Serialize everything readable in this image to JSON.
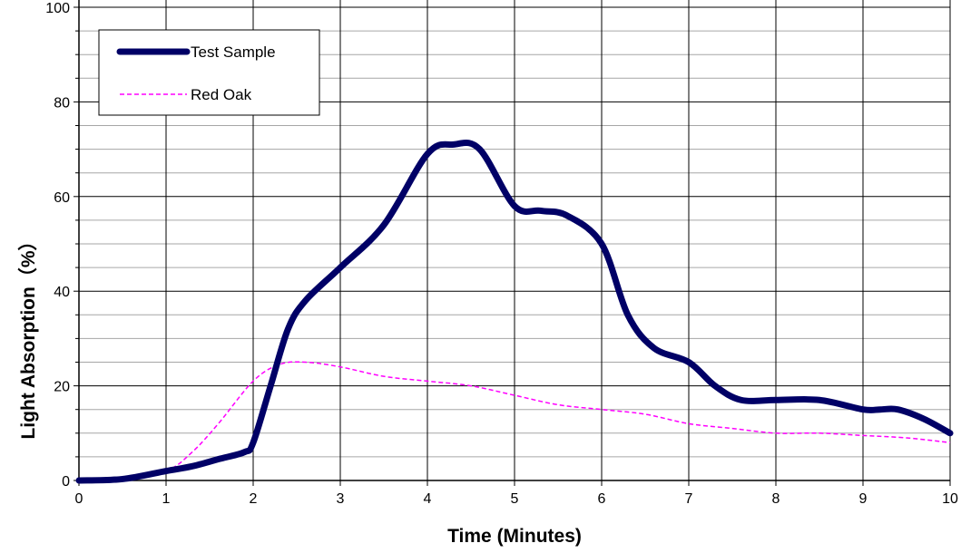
{
  "chart_data": {
    "type": "line",
    "title": "",
    "xlabel": "Time (Minutes)",
    "ylabel": "Light Absorption（%）",
    "xlim": [
      0,
      10
    ],
    "ylim": [
      0,
      100
    ],
    "x_ticks": [
      "0",
      "1",
      "2",
      "3",
      "4",
      "5",
      "6",
      "7",
      "8",
      "9",
      "10"
    ],
    "y_ticks": [
      "0",
      "20",
      "40",
      "60",
      "80",
      "100"
    ],
    "grid": "major and minor",
    "legend_position": "top-left",
    "series": [
      {
        "name": "Test Sample",
        "color": "#000066",
        "style": "solid-thick",
        "points": [
          [
            0,
            0
          ],
          [
            0.5,
            0.3
          ],
          [
            1,
            2
          ],
          [
            1.3,
            3
          ],
          [
            1.6,
            4.5
          ],
          [
            1.9,
            6
          ],
          [
            2,
            8
          ],
          [
            2.2,
            20
          ],
          [
            2.4,
            32
          ],
          [
            2.6,
            38
          ],
          [
            3,
            45
          ],
          [
            3.5,
            54
          ],
          [
            4,
            69
          ],
          [
            4.3,
            71
          ],
          [
            4.6,
            70
          ],
          [
            5,
            58
          ],
          [
            5.3,
            57
          ],
          [
            5.6,
            56
          ],
          [
            6,
            50
          ],
          [
            6.3,
            35
          ],
          [
            6.6,
            28
          ],
          [
            7,
            25
          ],
          [
            7.3,
            20
          ],
          [
            7.6,
            17
          ],
          [
            8,
            17
          ],
          [
            8.5,
            17
          ],
          [
            9,
            15
          ],
          [
            9.2,
            15
          ],
          [
            9.4,
            15
          ],
          [
            9.7,
            13
          ],
          [
            10,
            10
          ]
        ]
      },
      {
        "name": "Red Oak",
        "color": "#ff00ff",
        "style": "dashed",
        "points": [
          [
            0,
            0
          ],
          [
            0.5,
            0.5
          ],
          [
            1,
            2
          ],
          [
            1.3,
            6
          ],
          [
            1.6,
            12
          ],
          [
            2,
            21
          ],
          [
            2.3,
            24.5
          ],
          [
            2.6,
            25
          ],
          [
            3,
            24
          ],
          [
            3.5,
            22
          ],
          [
            4,
            21
          ],
          [
            4.5,
            20
          ],
          [
            5,
            18
          ],
          [
            5.5,
            16
          ],
          [
            6,
            15
          ],
          [
            6.5,
            14
          ],
          [
            7,
            12
          ],
          [
            7.5,
            11
          ],
          [
            8,
            10
          ],
          [
            8.5,
            10
          ],
          [
            9,
            9.5
          ],
          [
            9.5,
            9
          ],
          [
            10,
            8
          ]
        ]
      }
    ]
  }
}
